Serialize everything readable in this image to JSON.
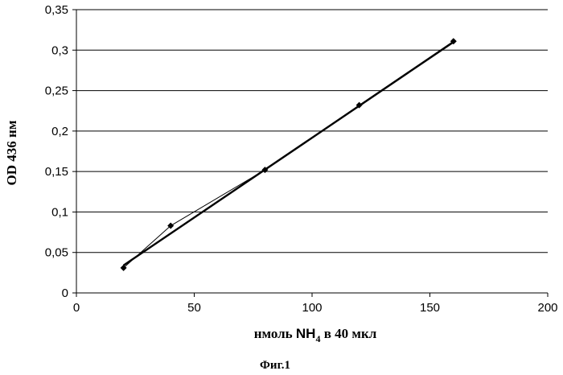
{
  "chart_data": {
    "type": "line",
    "title": "",
    "xlabel": {
      "prefix": "нмоль ",
      "formula": "NH",
      "formula_subscript": "4",
      "suffix": " в 40 мкл"
    },
    "ylabel": "OD 436 нм",
    "caption": "Фиг.1",
    "xlim": [
      0,
      200
    ],
    "ylim": [
      0,
      0.35
    ],
    "x_ticks": [
      0,
      50,
      100,
      150,
      200
    ],
    "x_tick_labels": [
      "0",
      "50",
      "100",
      "150",
      "200"
    ],
    "y_ticks": [
      0,
      0.05,
      0.1,
      0.15,
      0.2,
      0.25,
      0.3,
      0.35
    ],
    "y_tick_labels": [
      "0",
      "0,05",
      "0,1",
      "0,15",
      "0,2",
      "0,25",
      "0,3",
      "0,35"
    ],
    "grid": "horizontal",
    "legend": "none",
    "series": [
      {
        "type": "line-with-markers",
        "marker": "diamond",
        "x": [
          20,
          40,
          80,
          120,
          160
        ],
        "values": [
          0.031,
          0.083,
          0.152,
          0.232,
          0.311
        ]
      },
      {
        "type": "trendline",
        "x": [
          20,
          160
        ],
        "values": [
          0.034,
          0.31
        ]
      }
    ]
  },
  "colors": {
    "line": "#000000",
    "grid": "#000000",
    "background": "#ffffff"
  }
}
